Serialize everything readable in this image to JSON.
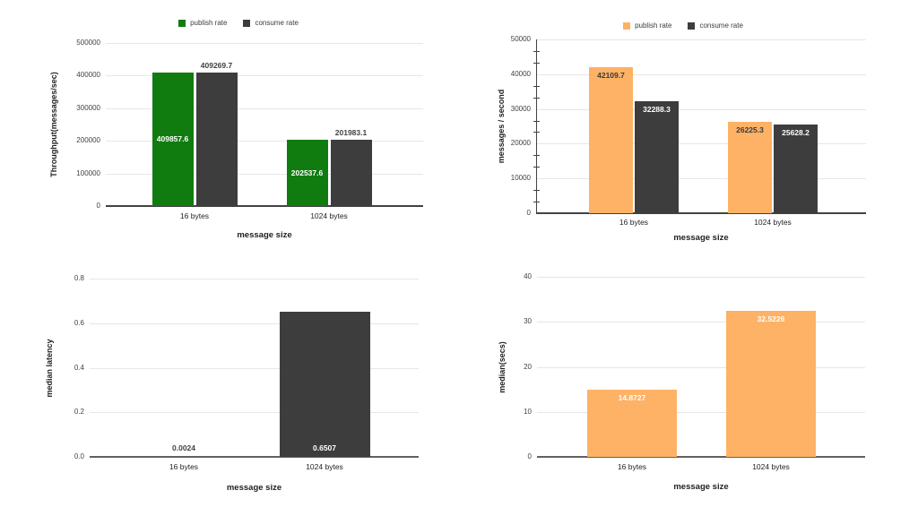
{
  "page": {
    "background": "#ffffff"
  },
  "colors": {
    "publish_green": "#107c10",
    "publish_orange": "#fdb265",
    "consume_dark": "#3d3d3d",
    "gridline": "#e6e6e6",
    "axis_text": "#424242"
  },
  "chart_data": [
    {
      "type": "bar",
      "title": "",
      "xlabel": "message size",
      "ylabel": "Throughput(messages/sec)",
      "categories": [
        "16 bytes",
        "1024 bytes"
      ],
      "ylim": [
        0,
        500000
      ],
      "yticks": [
        "500000",
        "400000",
        "300000",
        "200000",
        "100000",
        "0"
      ],
      "grid": true,
      "legend_position": "top",
      "legend": [
        {
          "label": "publish rate",
          "color": "#107c10"
        },
        {
          "label": "consume rate",
          "color": "#3d3d3d"
        }
      ],
      "series": [
        {
          "name": "publish rate",
          "color": "#107c10",
          "values": [
            409857.6,
            202537.6
          ],
          "labels": [
            "409857.6",
            "202537.6"
          ],
          "label_pos": "center",
          "label_colors": [
            "#ffffff",
            "#ffffff"
          ]
        },
        {
          "name": "consume rate",
          "color": "#3d3d3d",
          "values": [
            409269.7,
            201983.1
          ],
          "labels": [
            "409269.7",
            "201983.1"
          ],
          "label_pos": "above",
          "label_colors": [
            "#424242",
            "#424242"
          ]
        }
      ]
    },
    {
      "type": "bar",
      "title": "",
      "xlabel": "message size",
      "ylabel": "messages / second",
      "categories": [
        "16 bytes",
        "1024 bytes"
      ],
      "ylim": [
        0,
        50000
      ],
      "yticks": [
        "50000",
        "40000",
        "30000",
        "20000",
        "10000",
        "0"
      ],
      "grid": true,
      "legend_position": "top",
      "legend": [
        {
          "label": "publish rate",
          "color": "#fdb265"
        },
        {
          "label": "consume rate",
          "color": "#3d3d3d"
        }
      ],
      "series": [
        {
          "name": "publish rate",
          "color": "#fdb265",
          "values": [
            42109.7,
            26225.3
          ],
          "labels": [
            "42109.7",
            "26225.3"
          ],
          "label_pos": "top",
          "label_colors": [
            "#3a3a3a",
            "#3a3a3a"
          ]
        },
        {
          "name": "consume rate",
          "color": "#3d3d3d",
          "values": [
            32288.3,
            25628.2
          ],
          "labels": [
            "32288.3",
            "25628.2"
          ],
          "label_pos": "top",
          "label_colors": [
            "#ffffff",
            "#ffffff"
          ]
        }
      ]
    },
    {
      "type": "bar",
      "title": "",
      "xlabel": "message size",
      "ylabel": "median latency",
      "categories": [
        "16 bytes",
        "1024 bytes"
      ],
      "ylim": [
        0,
        0.8
      ],
      "yticks": [
        "0.8",
        "0.6",
        "0.4",
        "0.2",
        "0.0"
      ],
      "grid": true,
      "legend": null,
      "series": [
        {
          "name": "consume rate",
          "color": "#3d3d3d",
          "values": [
            0.0024,
            0.6507
          ],
          "labels": [
            "0.0024",
            "0.6507"
          ],
          "label_pos": "base",
          "label_colors": [
            "#424242",
            "#ffffff"
          ],
          "outline": [
            true,
            false
          ]
        }
      ]
    },
    {
      "type": "bar",
      "title": "",
      "xlabel": "message size",
      "ylabel": "median(secs)",
      "categories": [
        "16 bytes",
        "1024 bytes"
      ],
      "ylim": [
        0,
        40
      ],
      "yticks": [
        "40",
        "30",
        "20",
        "10",
        "0"
      ],
      "grid": true,
      "legend": null,
      "series": [
        {
          "name": "publish rate",
          "color": "#fdb265",
          "values": [
            14.8727,
            32.5226
          ],
          "labels": [
            "14.8727",
            "32.5226"
          ],
          "label_pos": "top",
          "label_colors": [
            "#ffffff",
            "#ffffff"
          ]
        }
      ]
    }
  ]
}
